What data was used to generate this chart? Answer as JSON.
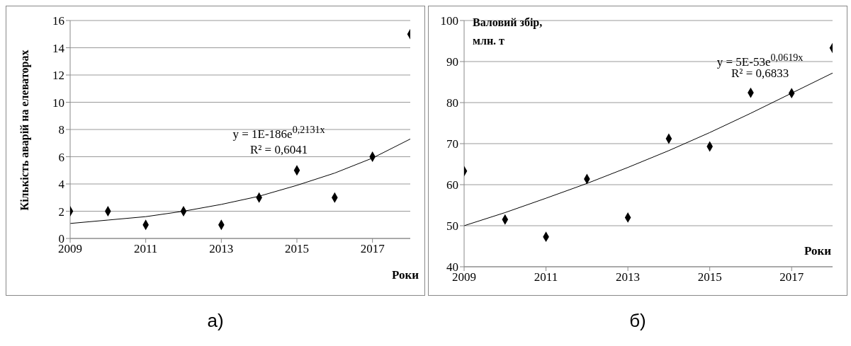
{
  "chart_data": [
    {
      "type": "scatter",
      "xlabel": "Роки",
      "ylabel": "Кількість аварій на елеваторах",
      "xlim": [
        2009,
        2018
      ],
      "xticks": [
        2009,
        2011,
        2013,
        2015,
        2017
      ],
      "ylim": [
        0,
        16
      ],
      "yticks": [
        0,
        2,
        4,
        6,
        8,
        10,
        12,
        14,
        16
      ],
      "grid": "y",
      "marker": "diamond",
      "x": [
        2009,
        2010,
        2011,
        2012,
        2013,
        2014,
        2015,
        2016,
        2017,
        2018
      ],
      "series": [
        {
          "color": "#000000",
          "values": [
            2,
            2,
            1,
            2,
            1,
            3,
            5,
            3,
            6,
            15
          ]
        },
        {
          "type": "line",
          "color": "#000000",
          "marker": "none",
          "values": [
            1.1,
            1.35,
            1.6,
            2.0,
            2.5,
            3.1,
            3.9,
            4.8,
            5.9,
            7.3
          ]
        }
      ],
      "annotations": [
        "y = 1E-186e$^{0,2131x}$",
        "R² = 0,6041",
        "а)"
      ]
    },
    {
      "type": "scatter",
      "xlabel": "Роки",
      "ylabel": "Валовий збір, млн. т",
      "xlim": [
        2009,
        2018
      ],
      "xticks": [
        2009,
        2011,
        2013,
        2015,
        2017
      ],
      "ylim": [
        40,
        100
      ],
      "yticks": [
        40,
        50,
        60,
        70,
        80,
        90,
        100
      ],
      "grid": "y",
      "marker": "diamond",
      "x": [
        2009,
        2010,
        2011,
        2012,
        2013,
        2014,
        2015,
        2016,
        2017,
        2018
      ],
      "series": [
        {
          "color": "#000000",
          "values": [
            63.3,
            51.5,
            47.3,
            61.4,
            52,
            71.2,
            69.3,
            82.4,
            82.3,
            93.3
          ]
        },
        {
          "type": "line",
          "color": "#000000",
          "marker": "none",
          "values": [
            50,
            53.2,
            56.7,
            60.3,
            64.2,
            68.3,
            72.7,
            77.4,
            82.3,
            87.2
          ]
        }
      ],
      "annotations": [
        "y = 5E-53e$^{0,0619x}$",
        "R² = 0,6833",
        "б)"
      ]
    }
  ]
}
